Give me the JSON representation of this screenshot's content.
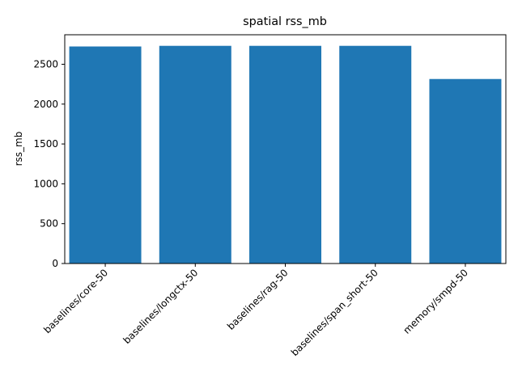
{
  "chart_data": {
    "type": "bar",
    "title": "spatial rss_mb",
    "xlabel": "",
    "ylabel": "rss_mb",
    "categories": [
      "baselines/core-50",
      "baselines/longctx-50",
      "baselines/rag-50",
      "baselines/span_short-50",
      "memory/smpd-50"
    ],
    "values": [
      2723,
      2731,
      2731,
      2731,
      2315
    ],
    "ylim": [
      0,
      2870
    ],
    "yticks": [
      0,
      500,
      1000,
      1500,
      2000,
      2500
    ],
    "grid": false,
    "legend": "none",
    "bar_color": "#1f77b4"
  }
}
